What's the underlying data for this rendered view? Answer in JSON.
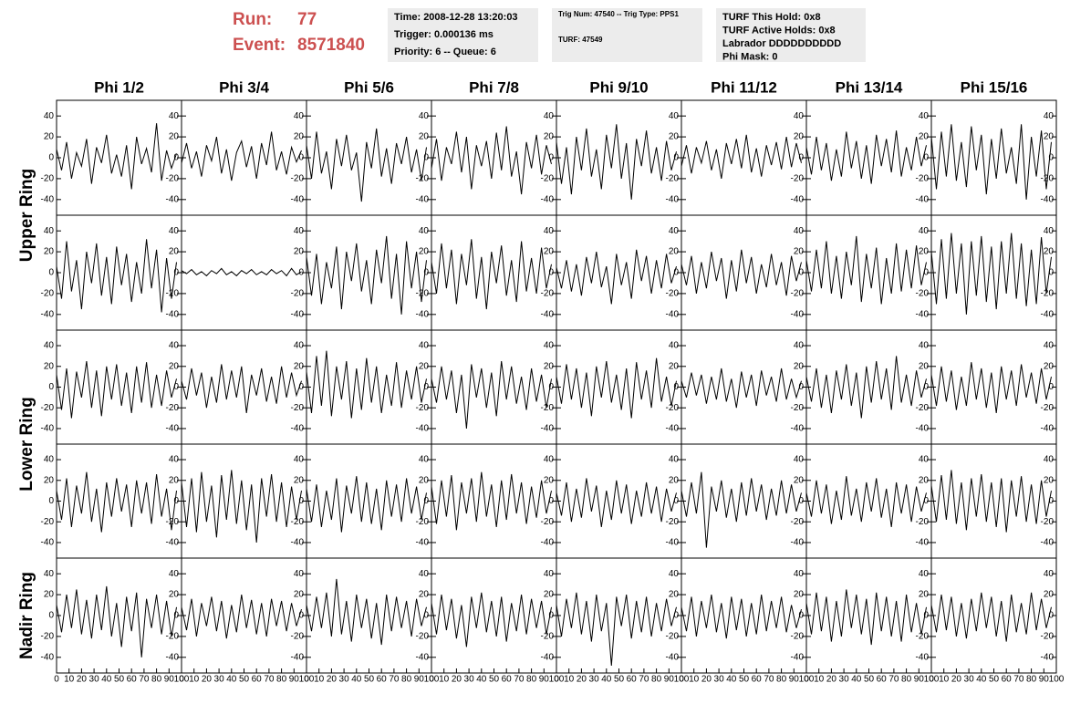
{
  "header": {
    "run_label": "Run:",
    "run": "77",
    "event_label": "Event:",
    "event": "8571840",
    "info_boxes": [
      [
        "Time: 2008-12-28 13:20:03",
        "Trigger: 0.000136 ms",
        "Priority: 6 -- Queue: 6"
      ],
      [
        "Trig Num: 47540 -- Trig Type: PPS1",
        "TURF: 47549"
      ],
      [
        "TURF This Hold: 0x8",
        "TURF Active Holds: 0x8",
        "Labrador DDDDDDDDDD",
        "Phi Mask: 0"
      ]
    ]
  },
  "chart_data": {
    "type": "line",
    "color": "#000000",
    "columns": [
      "Phi 1/2",
      "Phi 3/4",
      "Phi 5/6",
      "Phi 7/8",
      "Phi 9/10",
      "Phi 11/12",
      "Phi 13/14",
      "Phi 15/16"
    ],
    "row_labels": [
      "Upper Ring",
      "Lower Ring",
      "Nadir Ring"
    ],
    "xlim": [
      0,
      100
    ],
    "xticks": [
      0,
      10,
      20,
      30,
      40,
      50,
      60,
      70,
      80,
      90,
      100
    ],
    "ylim": [
      -55,
      55
    ],
    "yticks": [
      -40,
      -20,
      0,
      20,
      40
    ],
    "x": [
      0,
      4,
      8,
      12,
      16,
      20,
      24,
      28,
      32,
      36,
      40,
      44,
      48,
      52,
      56,
      60,
      64,
      68,
      72,
      76,
      80,
      84,
      88,
      92,
      96
    ],
    "series": [
      {
        "values": [
          8,
          -12,
          15,
          -20,
          5,
          -8,
          18,
          -25,
          10,
          -5,
          22,
          -15,
          3,
          -18,
          12,
          -30,
          20,
          -6,
          9,
          -14,
          33,
          -22,
          7,
          -10,
          4
        ]
      },
      {
        "values": [
          -5,
          14,
          -10,
          6,
          -18,
          12,
          -3,
          20,
          -15,
          8,
          -22,
          5,
          16,
          -9,
          11,
          -20,
          14,
          -7,
          25,
          -12,
          6,
          -16,
          10,
          -4,
          7
        ]
      },
      {
        "values": [
          12,
          -20,
          25,
          -15,
          6,
          -30,
          18,
          -8,
          22,
          -12,
          5,
          -42,
          15,
          -10,
          28,
          -18,
          9,
          -25,
          14,
          -6,
          20,
          -14,
          8,
          -22,
          10
        ]
      },
      {
        "values": [
          -10,
          18,
          -22,
          10,
          -6,
          25,
          -14,
          20,
          -30,
          12,
          -8,
          16,
          -20,
          24,
          -12,
          30,
          -18,
          6,
          -35,
          15,
          -10,
          22,
          -16,
          12,
          -6
        ]
      },
      {
        "values": [
          15,
          -25,
          10,
          -35,
          20,
          -12,
          28,
          -18,
          8,
          -30,
          22,
          -10,
          32,
          -20,
          14,
          -40,
          18,
          -8,
          26,
          -15,
          10,
          -22,
          16,
          -12,
          6
        ]
      },
      {
        "values": [
          -8,
          12,
          -15,
          10,
          -5,
          16,
          -12,
          8,
          -20,
          14,
          -6,
          18,
          -10,
          22,
          -14,
          9,
          -18,
          12,
          -7,
          15,
          -11,
          20,
          -9,
          14,
          -5
        ]
      },
      {
        "values": [
          10,
          -16,
          20,
          -12,
          14,
          -22,
          8,
          -18,
          25,
          -10,
          16,
          -20,
          12,
          -25,
          22,
          -8,
          18,
          -14,
          26,
          -18,
          10,
          -12,
          20,
          -8,
          12
        ]
      },
      {
        "values": [
          20,
          -30,
          25,
          -18,
          32,
          -22,
          15,
          -28,
          30,
          -12,
          22,
          -35,
          18,
          -20,
          28,
          -15,
          10,
          -25,
          32,
          -40,
          20,
          -18,
          26,
          -30,
          15
        ]
      },
      {
        "values": [
          6,
          -25,
          30,
          -18,
          12,
          -35,
          20,
          -10,
          28,
          -22,
          15,
          -30,
          25,
          -12,
          18,
          -28,
          10,
          -20,
          32,
          -15,
          22,
          -38,
          14,
          -25,
          10
        ]
      },
      {
        "values": [
          2,
          -1,
          3,
          -2,
          1,
          -3,
          2,
          -1,
          4,
          -2,
          1,
          -3,
          2,
          -1,
          3,
          -2,
          1,
          -2,
          3,
          -1,
          2,
          -3,
          4,
          -2,
          1
        ]
      },
      {
        "values": [
          15,
          -22,
          18,
          -30,
          10,
          -15,
          25,
          -35,
          20,
          -8,
          28,
          -18,
          12,
          -30,
          22,
          -10,
          35,
          -25,
          18,
          -40,
          30,
          -15,
          20,
          -28,
          12
        ]
      },
      {
        "values": [
          10,
          -20,
          28,
          -15,
          22,
          -30,
          18,
          -12,
          32,
          -25,
          15,
          -35,
          20,
          -10,
          26,
          -22,
          12,
          -28,
          30,
          -18,
          14,
          -20,
          24,
          -15,
          8
        ]
      },
      {
        "values": [
          5,
          -15,
          12,
          -18,
          8,
          -22,
          15,
          -10,
          20,
          -14,
          6,
          -30,
          18,
          -12,
          10,
          -25,
          22,
          -8,
          16,
          -20,
          12,
          -15,
          18,
          -10,
          6
        ]
      },
      {
        "values": [
          8,
          -12,
          16,
          -20,
          10,
          -15,
          20,
          -8,
          14,
          -25,
          12,
          -18,
          22,
          -10,
          15,
          -20,
          8,
          -14,
          18,
          -12,
          10,
          -22,
          16,
          -8,
          10
        ]
      },
      {
        "values": [
          12,
          -18,
          22,
          -15,
          30,
          -20,
          16,
          -25,
          20,
          -12,
          35,
          -28,
          18,
          -15,
          24,
          -30,
          14,
          -20,
          28,
          -18,
          22,
          -15,
          26,
          -12,
          10
        ]
      },
      {
        "values": [
          20,
          -30,
          32,
          -25,
          38,
          -20,
          28,
          -40,
          30,
          -22,
          35,
          -28,
          25,
          -35,
          30,
          -20,
          38,
          -25,
          28,
          -32,
          22,
          -30,
          34,
          -20,
          15
        ]
      },
      {
        "values": [
          12,
          -22,
          18,
          -30,
          15,
          -10,
          25,
          -20,
          16,
          -28,
          20,
          -12,
          22,
          -18,
          14,
          -25,
          20,
          -15,
          24,
          -20,
          12,
          -18,
          16,
          -10,
          8
        ]
      },
      {
        "values": [
          6,
          -12,
          18,
          -8,
          14,
          -20,
          10,
          -15,
          22,
          -12,
          16,
          -10,
          20,
          -25,
          12,
          -8,
          18,
          -14,
          10,
          -16,
          20,
          -10,
          14,
          -8,
          6
        ]
      },
      {
        "values": [
          15,
          -25,
          30,
          -18,
          35,
          -28,
          20,
          -12,
          25,
          -30,
          18,
          -22,
          28,
          -15,
          20,
          -25,
          12,
          -18,
          24,
          -20,
          16,
          -12,
          20,
          -15,
          8
        ]
      },
      {
        "values": [
          8,
          -15,
          20,
          -12,
          16,
          -25,
          12,
          -40,
          22,
          -10,
          18,
          -20,
          14,
          -28,
          25,
          -12,
          20,
          -16,
          10,
          -22,
          18,
          -14,
          12,
          -20,
          8
        ]
      },
      {
        "values": [
          10,
          -16,
          22,
          -12,
          18,
          -20,
          14,
          -28,
          20,
          -10,
          25,
          -15,
          12,
          -22,
          18,
          -30,
          24,
          -12,
          16,
          -20,
          28,
          -14,
          10,
          -18,
          6
        ]
      },
      {
        "values": [
          6,
          -10,
          14,
          -8,
          12,
          -16,
          10,
          -12,
          18,
          -14,
          8,
          -20,
          15,
          -10,
          12,
          -18,
          16,
          -8,
          10,
          -14,
          18,
          -12,
          8,
          -10,
          6
        ]
      },
      {
        "values": [
          10,
          -14,
          18,
          -20,
          12,
          -25,
          16,
          -12,
          22,
          -18,
          14,
          -30,
          20,
          -15,
          25,
          -12,
          18,
          -22,
          30,
          -15,
          12,
          -18,
          16,
          -10,
          8
        ]
      },
      {
        "values": [
          12,
          -18,
          20,
          -14,
          16,
          -22,
          10,
          -18,
          24,
          -12,
          18,
          -20,
          14,
          -25,
          20,
          -12,
          16,
          -18,
          22,
          -10,
          14,
          -16,
          18,
          -12,
          10
        ]
      },
      {
        "values": [
          10,
          -18,
          22,
          -25,
          15,
          -12,
          28,
          -20,
          12,
          -30,
          18,
          -15,
          22,
          -10,
          16,
          -25,
          20,
          -12,
          18,
          -22,
          26,
          -15,
          12,
          -28,
          10
        ]
      },
      {
        "values": [
          18,
          -25,
          22,
          -30,
          28,
          -20,
          15,
          -35,
          25,
          -18,
          30,
          -22,
          20,
          -28,
          16,
          -40,
          22,
          -15,
          26,
          -20,
          18,
          -25,
          14,
          -18,
          10
        ]
      },
      {
        "values": [
          12,
          -20,
          16,
          -25,
          10,
          -18,
          22,
          -30,
          15,
          -12,
          24,
          -20,
          18,
          -22,
          12,
          -28,
          20,
          -15,
          16,
          -20,
          22,
          -12,
          14,
          -18,
          8
        ]
      },
      {
        "values": [
          14,
          -22,
          20,
          -15,
          25,
          -28,
          18,
          -12,
          22,
          -20,
          28,
          -15,
          16,
          -25,
          20,
          -18,
          26,
          -12,
          18,
          -22,
          14,
          -16,
          20,
          -12,
          10
        ]
      },
      {
        "values": [
          8,
          -14,
          18,
          -20,
          12,
          -16,
          22,
          -10,
          15,
          -25,
          10,
          -18,
          20,
          -12,
          16,
          -22,
          10,
          -15,
          18,
          -12,
          14,
          -20,
          12,
          -10,
          8
        ]
      },
      {
        "values": [
          10,
          -15,
          18,
          -12,
          28,
          -45,
          14,
          -10,
          20,
          -16,
          12,
          -20,
          18,
          -14,
          22,
          -10,
          16,
          -18,
          12,
          -14,
          20,
          -12,
          16,
          -10,
          8
        ]
      },
      {
        "values": [
          8,
          -15,
          20,
          -12,
          16,
          -22,
          10,
          -18,
          24,
          -14,
          12,
          -20,
          18,
          -10,
          22,
          -16,
          12,
          -25,
          18,
          -12,
          16,
          -20,
          14,
          -10,
          8
        ]
      },
      {
        "values": [
          15,
          -20,
          25,
          -18,
          30,
          -22,
          18,
          -28,
          22,
          -15,
          26,
          -20,
          18,
          -25,
          22,
          -30,
          20,
          -15,
          24,
          -20,
          16,
          -22,
          20,
          -15,
          10
        ]
      },
      {
        "values": [
          10,
          -16,
          20,
          -12,
          25,
          -18,
          15,
          -22,
          20,
          -14,
          28,
          -20,
          12,
          -30,
          18,
          -15,
          22,
          -40,
          16,
          -12,
          20,
          -18,
          14,
          -20,
          8
        ]
      },
      {
        "values": [
          8,
          -14,
          16,
          -20,
          12,
          -10,
          18,
          -15,
          14,
          -22,
          10,
          -16,
          20,
          -12,
          15,
          -18,
          12,
          -20,
          16,
          -10,
          14,
          -15,
          12,
          -10,
          6
        ]
      },
      {
        "values": [
          10,
          -15,
          18,
          -12,
          22,
          -20,
          35,
          -18,
          14,
          -25,
          20,
          -12,
          16,
          -22,
          12,
          -28,
          20,
          -15,
          18,
          -12,
          14,
          -20,
          16,
          -10,
          8
        ]
      },
      {
        "values": [
          12,
          -18,
          20,
          -14,
          16,
          -22,
          10,
          -30,
          18,
          -12,
          22,
          -16,
          14,
          -20,
          18,
          -25,
          12,
          -15,
          20,
          -18,
          16,
          -12,
          14,
          -18,
          8
        ]
      },
      {
        "values": [
          10,
          -20,
          16,
          -12,
          22,
          -18,
          14,
          -25,
          20,
          -15,
          12,
          -48,
          18,
          -10,
          20,
          -22,
          14,
          -16,
          18,
          -20,
          12,
          -15,
          16,
          -10,
          8
        ]
      },
      {
        "values": [
          8,
          -15,
          18,
          -20,
          14,
          -12,
          20,
          -16,
          12,
          -22,
          18,
          -14,
          16,
          -20,
          12,
          -18,
          20,
          -15,
          14,
          -12,
          18,
          -16,
          10,
          -12,
          6
        ]
      },
      {
        "values": [
          12,
          -18,
          22,
          -15,
          18,
          -25,
          14,
          -20,
          25,
          -12,
          20,
          -18,
          16,
          -28,
          22,
          -15,
          18,
          -20,
          14,
          -25,
          20,
          -16,
          12,
          -18,
          8
        ]
      },
      {
        "values": [
          10,
          -16,
          20,
          -14,
          18,
          -20,
          12,
          -22,
          16,
          -15,
          22,
          -12,
          18,
          -20,
          14,
          -25,
          20,
          -16,
          12,
          -18,
          22,
          -14,
          16,
          -12,
          8
        ]
      }
    ]
  }
}
